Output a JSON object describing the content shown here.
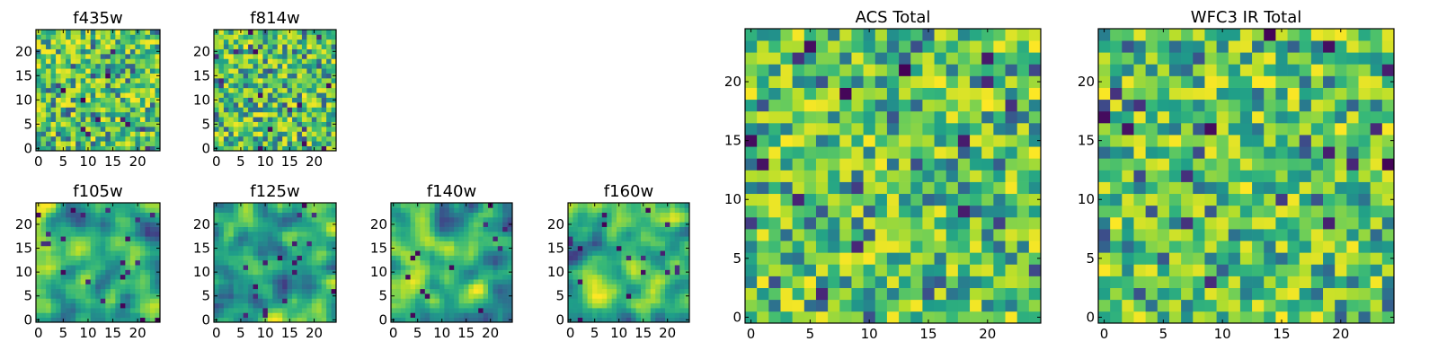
{
  "chart_data": [
    {
      "type": "heatmap",
      "title": "f435w",
      "colormap": "viridis",
      "grid_size": [
        25,
        25
      ],
      "xlim": [
        -0.5,
        24.5
      ],
      "ylim": [
        -0.5,
        24.5
      ],
      "xticks": [
        0,
        5,
        10,
        15,
        20
      ],
      "yticks": [
        0,
        5,
        10,
        15,
        20
      ],
      "texture": "fine noise",
      "seed": 11,
      "scale": 1.5
    },
    {
      "type": "heatmap",
      "title": "f814w",
      "colormap": "viridis",
      "grid_size": [
        25,
        25
      ],
      "xlim": [
        -0.5,
        24.5
      ],
      "ylim": [
        -0.5,
        24.5
      ],
      "xticks": [
        0,
        5,
        10,
        15,
        20
      ],
      "yticks": [
        0,
        5,
        10,
        15,
        20
      ],
      "texture": "fine noise",
      "seed": 23,
      "scale": 1.5
    },
    {
      "type": "heatmap",
      "title": "f105w",
      "colormap": "viridis",
      "grid_size": [
        25,
        25
      ],
      "xlim": [
        -0.5,
        24.5
      ],
      "ylim": [
        -0.5,
        24.5
      ],
      "xticks": [
        0,
        5,
        10,
        15,
        20
      ],
      "yticks": [
        0,
        5,
        10,
        15,
        20
      ],
      "texture": "smooth blobs",
      "seed": 37,
      "scale": 3.5
    },
    {
      "type": "heatmap",
      "title": "f125w",
      "colormap": "viridis",
      "grid_size": [
        25,
        25
      ],
      "xlim": [
        -0.5,
        24.5
      ],
      "ylim": [
        -0.5,
        24.5
      ],
      "xticks": [
        0,
        5,
        10,
        15,
        20
      ],
      "yticks": [
        0,
        5,
        10,
        15,
        20
      ],
      "texture": "smooth blobs",
      "seed": 41,
      "scale": 3.5
    },
    {
      "type": "heatmap",
      "title": "f140w",
      "colormap": "viridis",
      "grid_size": [
        25,
        25
      ],
      "xlim": [
        -0.5,
        24.5
      ],
      "ylim": [
        -0.5,
        24.5
      ],
      "xticks": [
        0,
        5,
        10,
        15,
        20
      ],
      "yticks": [
        0,
        5,
        10,
        15,
        20
      ],
      "texture": "smooth blobs",
      "seed": 53,
      "scale": 3.5
    },
    {
      "type": "heatmap",
      "title": "f160w",
      "colormap": "viridis",
      "grid_size": [
        25,
        25
      ],
      "xlim": [
        -0.5,
        24.5
      ],
      "ylim": [
        -0.5,
        24.5
      ],
      "xticks": [
        0,
        5,
        10,
        15,
        20
      ],
      "yticks": [
        0,
        5,
        10,
        15,
        20
      ],
      "texture": "smooth blobs",
      "seed": 67,
      "scale": 3.5
    },
    {
      "type": "heatmap",
      "title": "ACS Total",
      "colormap": "viridis",
      "grid_size": [
        25,
        25
      ],
      "xlim": [
        -0.5,
        24.5
      ],
      "ylim": [
        -0.5,
        24.5
      ],
      "xticks": [
        0,
        5,
        10,
        15,
        20
      ],
      "yticks": [
        0,
        5,
        10,
        15,
        20
      ],
      "texture": "coarse noise",
      "seed": 71,
      "scale": 1.2
    },
    {
      "type": "heatmap",
      "title": "WFC3 IR Total",
      "colormap": "viridis",
      "grid_size": [
        25,
        25
      ],
      "xlim": [
        -0.5,
        24.5
      ],
      "ylim": [
        -0.5,
        24.5
      ],
      "xticks": [
        0,
        5,
        10,
        15,
        20
      ],
      "yticks": [
        0,
        5,
        10,
        15,
        20
      ],
      "texture": "coarse noise",
      "seed": 89,
      "scale": 1.2
    }
  ]
}
